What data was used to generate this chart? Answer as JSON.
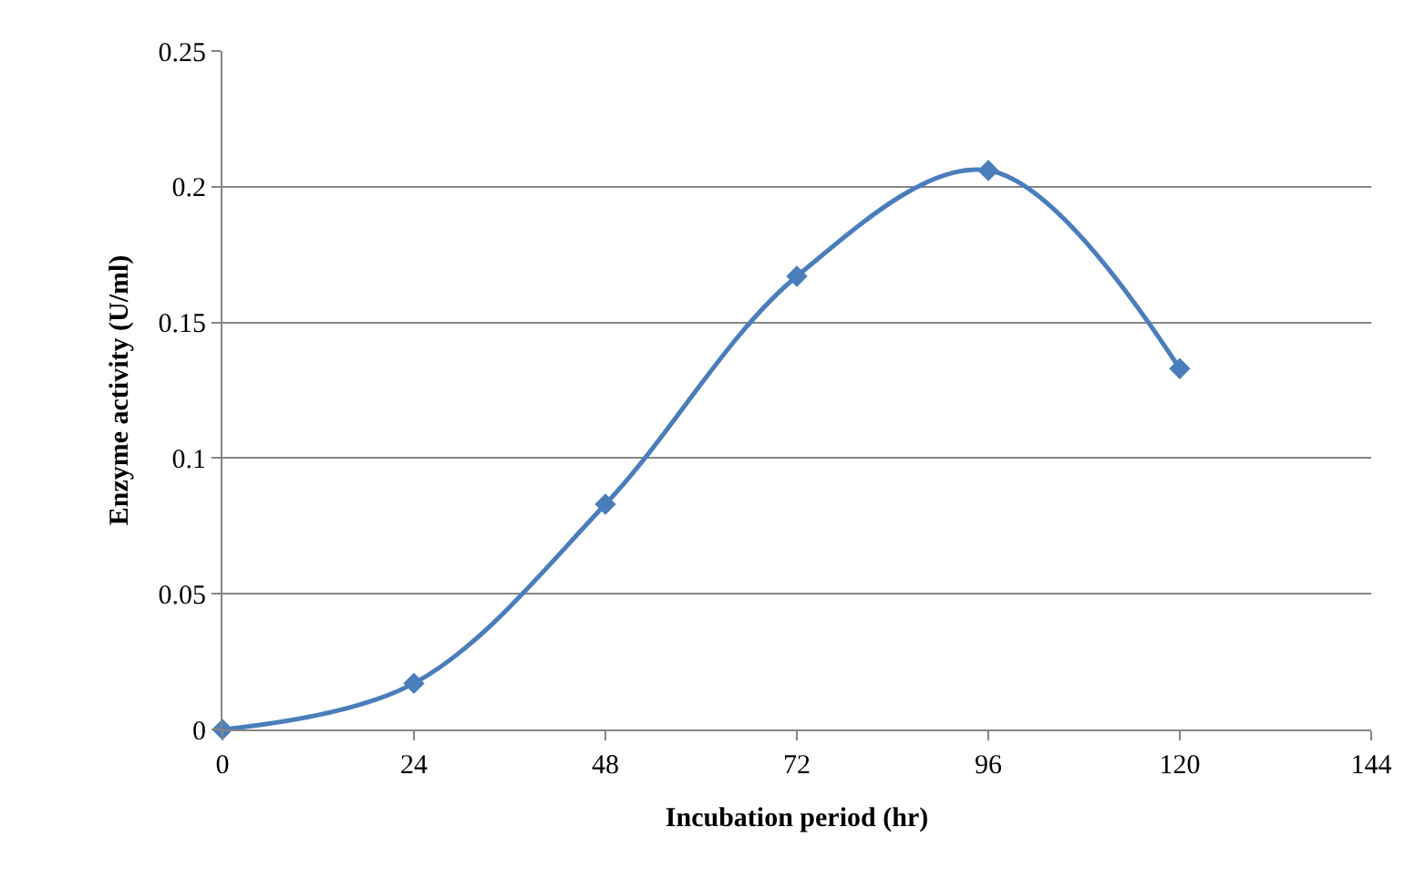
{
  "chart_data": {
    "type": "line",
    "xlabel": "Incubation period (hr)",
    "ylabel": "Enzyme activity (U/ml)",
    "x": [
      0,
      24,
      48,
      72,
      96,
      120
    ],
    "series": [
      {
        "color": "#4a7ebb",
        "values": [
          0,
          0.017,
          0.083,
          0.167,
          0.206,
          0.133
        ]
      }
    ],
    "xlim": [
      0,
      144
    ],
    "xticks": [
      0,
      24,
      48,
      72,
      96,
      120,
      144
    ],
    "ylim": [
      0,
      0.25
    ],
    "yticks": [
      0,
      0.05,
      0.1,
      0.15,
      0.2,
      0.25
    ],
    "grid": "y",
    "marker": "diamond",
    "line_style": "solid"
  }
}
